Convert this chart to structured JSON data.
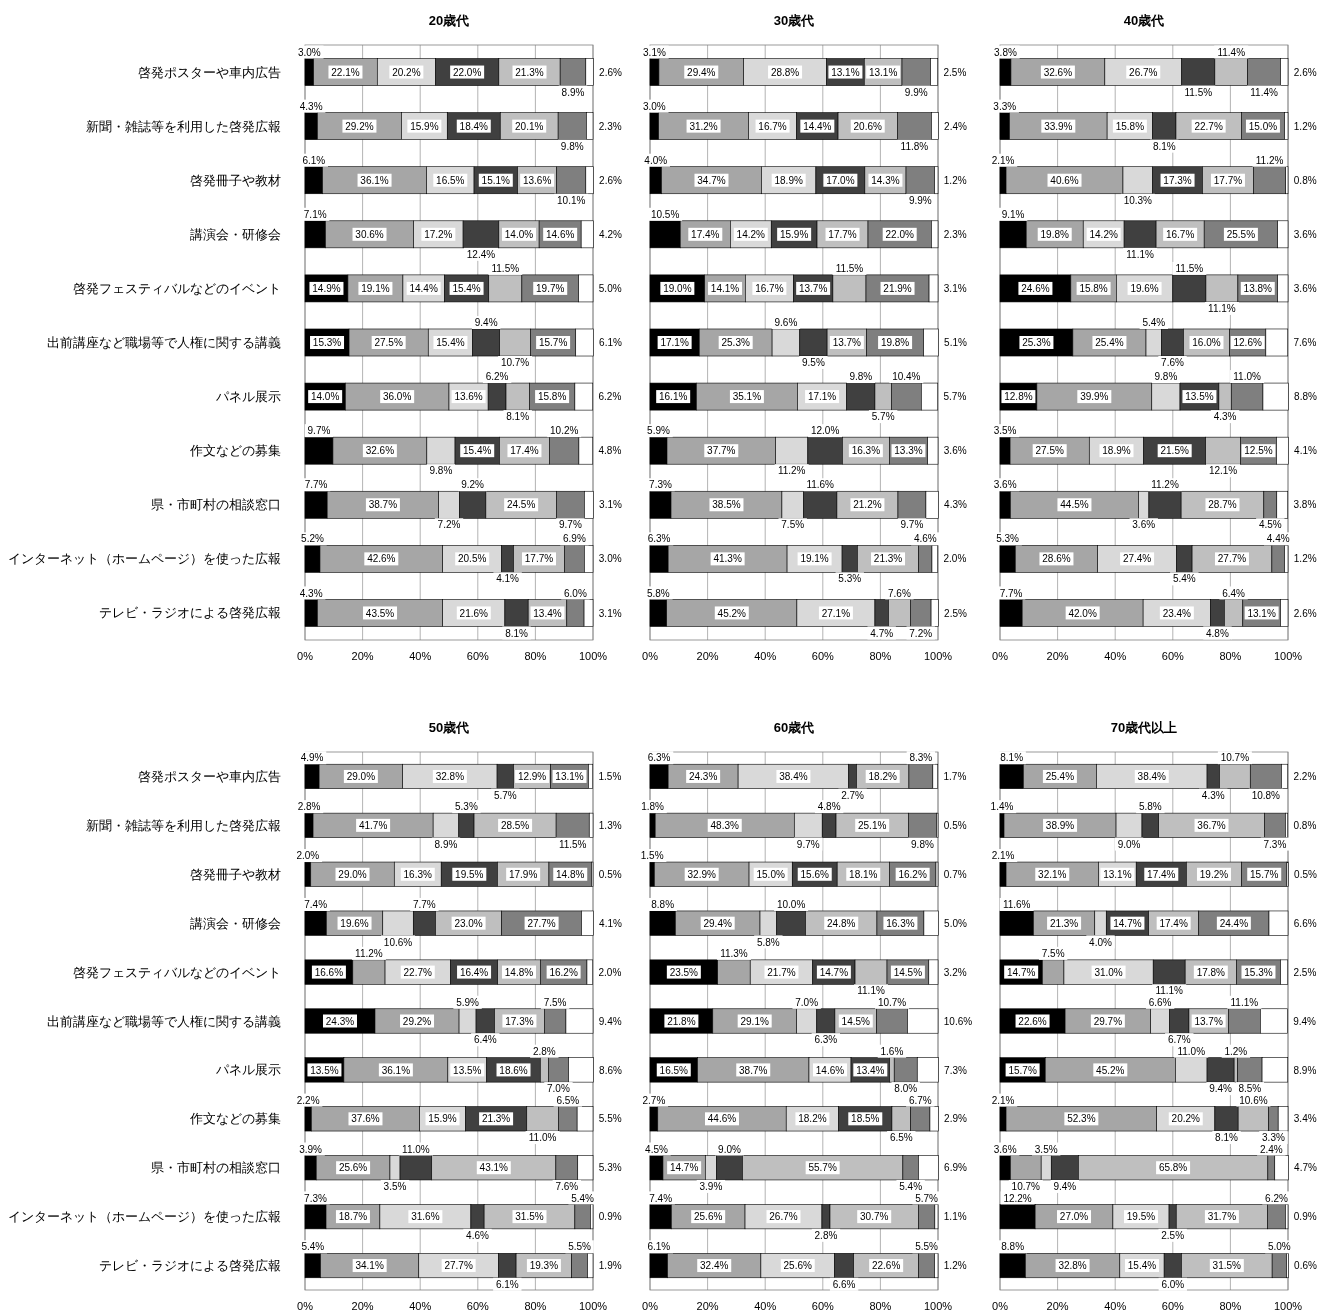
{
  "chart_data": [
    {
      "type": "bar",
      "orientation": "horizontal",
      "stacked": true,
      "title": "20歳代",
      "categories": [
        "啓発ポスターや車内広告",
        "新聞・雑誌等を利用した啓発広報",
        "啓発冊子や教材",
        "講演会・研修会",
        "啓発フェスティバルなどのイベント",
        "出前講座など職場等で人権に関する講義",
        "パネル展示",
        "作文などの募集",
        "県・市町村の相談窓口",
        "インターネット（ホームページ）を使った広報",
        "テレビ・ラジオによる啓発広報"
      ],
      "xlim": [
        0,
        100
      ],
      "xticks": [
        {
          "value": 0,
          "label": "0%"
        },
        {
          "value": 20,
          "label": "20%"
        },
        {
          "value": 40,
          "label": "40%"
        },
        {
          "value": 60,
          "label": "60%"
        },
        {
          "value": 80,
          "label": "80%"
        },
        {
          "value": 100,
          "label": "100%"
        }
      ],
      "grid": "x",
      "series": [
        {
          "color": "#000000",
          "values": [
            3.0,
            4.3,
            6.1,
            7.1,
            14.9,
            15.3,
            14.0,
            9.7,
            7.7,
            5.2,
            4.3
          ],
          "value_labels": [
            "3.0%",
            "4.3%",
            "6.1%",
            "7.1%",
            "14.9%",
            "15.3%",
            "14.0%",
            "9.7%",
            "7.7%",
            "5.2%",
            "4.3%"
          ]
        },
        {
          "color": "#a6a6a6",
          "values": [
            22.1,
            29.2,
            36.1,
            30.6,
            19.1,
            27.5,
            36.0,
            32.6,
            38.7,
            42.6,
            43.5
          ],
          "value_labels": [
            "22.1%",
            "29.2%",
            "36.1%",
            "30.6%",
            "19.1%",
            "27.5%",
            "36.0%",
            "32.6%",
            "38.7%",
            "42.6%",
            "43.5%"
          ]
        },
        {
          "color": "#d9d9d9",
          "values": [
            20.2,
            15.9,
            16.5,
            17.2,
            14.4,
            15.4,
            13.6,
            9.8,
            7.2,
            20.5,
            21.6
          ],
          "value_labels": [
            "20.2%",
            "15.9%",
            "16.5%",
            "17.2%",
            "14.4%",
            "15.4%",
            "13.6%",
            "9.8%",
            "7.2%",
            "20.5%",
            "21.6%"
          ]
        },
        {
          "color": "#404040",
          "values": [
            22.0,
            18.4,
            15.1,
            12.4,
            15.4,
            9.4,
            6.2,
            15.4,
            9.2,
            4.1,
            8.1
          ],
          "value_labels": [
            "22.0%",
            "18.4%",
            "15.1%",
            "12.4%",
            "15.4%",
            "9.4%",
            "6.2%",
            "15.4%",
            "9.2%",
            "4.1%",
            "8.1%"
          ]
        },
        {
          "color": "#bfbfbf",
          "values": [
            21.3,
            20.1,
            13.6,
            14.0,
            11.5,
            10.7,
            8.1,
            17.4,
            24.5,
            17.7,
            13.4
          ],
          "value_labels": [
            "21.3%",
            "20.1%",
            "13.6%",
            "14.0%",
            "11.5%",
            "10.7%",
            "8.1%",
            "17.4%",
            "24.5%",
            "17.7%",
            "13.4%"
          ]
        },
        {
          "color": "#7f7f7f",
          "values": [
            8.9,
            9.8,
            10.1,
            14.6,
            19.7,
            15.7,
            15.8,
            10.2,
            9.7,
            6.9,
            6.0
          ],
          "value_labels": [
            "8.9%",
            "9.8%",
            "10.1%",
            "14.6%",
            "19.7%",
            "15.7%",
            "15.8%",
            "10.2%",
            "9.7%",
            "6.9%",
            "6.0%"
          ]
        },
        {
          "color": "#ffffff",
          "values": [
            2.6,
            2.3,
            2.6,
            4.2,
            5.0,
            6.1,
            6.2,
            4.8,
            3.1,
            3.0,
            3.1
          ],
          "value_labels": [
            "2.6%",
            "2.3%",
            "2.6%",
            "4.2%",
            "5.0%",
            "6.1%",
            "6.2%",
            "4.8%",
            "3.1%",
            "3.0%",
            "3.1%"
          ]
        }
      ]
    },
    {
      "type": "bar",
      "orientation": "horizontal",
      "stacked": true,
      "title": "30歳代",
      "categories": [
        null,
        null,
        null,
        null,
        null,
        null,
        null,
        null,
        null,
        null,
        null
      ],
      "xlim": [
        0,
        100
      ],
      "xticks": [
        {
          "value": 0,
          "label": "0%"
        },
        {
          "value": 20,
          "label": "20%"
        },
        {
          "value": 40,
          "label": "40%"
        },
        {
          "value": 60,
          "label": "60%"
        },
        {
          "value": 80,
          "label": "80%"
        },
        {
          "value": 100,
          "label": "100%"
        }
      ],
      "grid": "x",
      "series": [
        {
          "color": "#000000",
          "values": [
            3.1,
            3.0,
            4.0,
            10.5,
            19.0,
            17.1,
            16.1,
            5.9,
            7.3,
            6.3,
            5.8
          ],
          "value_labels": [
            "3.1%",
            "3.0%",
            "4.0%",
            "10.5%",
            "19.0%",
            "17.1%",
            "16.1%",
            "5.9%",
            "7.3%",
            "6.3%",
            "5.8%"
          ]
        },
        {
          "color": "#a6a6a6",
          "values": [
            29.4,
            31.2,
            34.7,
            17.4,
            14.1,
            25.3,
            35.1,
            37.7,
            38.5,
            41.3,
            45.2
          ],
          "value_labels": [
            "29.4%",
            "31.2%",
            "34.7%",
            "17.4%",
            "14.1%",
            "25.3%",
            "35.1%",
            "37.7%",
            "38.5%",
            "41.3%",
            "45.2%"
          ]
        },
        {
          "color": "#d9d9d9",
          "values": [
            28.8,
            16.7,
            18.9,
            14.2,
            16.7,
            9.6,
            17.1,
            11.2,
            7.5,
            19.1,
            27.1
          ],
          "value_labels": [
            "28.8%",
            "16.7%",
            "18.9%",
            "14.2%",
            "16.7%",
            "9.6%",
            "17.1%",
            "11.2%",
            "7.5%",
            "19.1%",
            "27.1%"
          ]
        },
        {
          "color": "#404040",
          "values": [
            13.1,
            14.4,
            17.0,
            15.9,
            13.7,
            9.5,
            9.8,
            12.0,
            11.6,
            5.3,
            4.7
          ],
          "value_labels": [
            "13.1%",
            "14.4%",
            "17.0%",
            "15.9%",
            "13.7%",
            "9.5%",
            "9.8%",
            "12.0%",
            "11.6%",
            "5.3%",
            "4.7%"
          ]
        },
        {
          "color": "#bfbfbf",
          "values": [
            13.1,
            20.6,
            14.3,
            17.7,
            11.5,
            13.7,
            5.7,
            16.3,
            21.2,
            21.3,
            7.6
          ],
          "value_labels": [
            "13.1%",
            "20.6%",
            "14.3%",
            "17.7%",
            "11.5%",
            "13.7%",
            "5.7%",
            "16.3%",
            "21.2%",
            "21.3%",
            "7.6%"
          ]
        },
        {
          "color": "#7f7f7f",
          "values": [
            9.9,
            11.8,
            9.9,
            22.0,
            21.9,
            19.8,
            10.4,
            13.3,
            9.7,
            4.6,
            7.2
          ],
          "value_labels": [
            "9.9%",
            "11.8%",
            "9.9%",
            "22.0%",
            "21.9%",
            "19.8%",
            "10.4%",
            "13.3%",
            "9.7%",
            "4.6%",
            "7.2%"
          ]
        },
        {
          "color": "#ffffff",
          "values": [
            2.5,
            2.4,
            1.2,
            2.3,
            3.1,
            5.1,
            5.7,
            3.6,
            4.3,
            2.0,
            2.5
          ],
          "value_labels": [
            "2.5%",
            "2.4%",
            "1.2%",
            "2.3%",
            "3.1%",
            "5.1%",
            "5.7%",
            "3.6%",
            "4.3%",
            "2.0%",
            "2.5%"
          ]
        }
      ]
    },
    {
      "type": "bar",
      "orientation": "horizontal",
      "stacked": true,
      "title": "40歳代",
      "categories": [
        null,
        null,
        null,
        null,
        null,
        null,
        null,
        null,
        null,
        null,
        null
      ],
      "xlim": [
        0,
        100
      ],
      "xticks": [
        {
          "value": 0,
          "label": "0%"
        },
        {
          "value": 20,
          "label": "20%"
        },
        {
          "value": 40,
          "label": "40%"
        },
        {
          "value": 60,
          "label": "60%"
        },
        {
          "value": 80,
          "label": "80%"
        },
        {
          "value": 100,
          "label": "100%"
        }
      ],
      "grid": "x",
      "series": [
        {
          "color": "#000000",
          "values": [
            3.8,
            3.3,
            2.1,
            9.1,
            24.6,
            25.3,
            12.8,
            3.5,
            3.6,
            5.3,
            7.7
          ],
          "value_labels": [
            "3.8%",
            "3.3%",
            "2.1%",
            "9.1%",
            "24.6%",
            "25.3%",
            "12.8%",
            "3.5%",
            "3.6%",
            "5.3%",
            "7.7%"
          ]
        },
        {
          "color": "#a6a6a6",
          "values": [
            32.6,
            33.9,
            40.6,
            19.8,
            15.8,
            25.4,
            39.9,
            27.5,
            44.5,
            28.6,
            42.0
          ],
          "value_labels": [
            "32.6%",
            "33.9%",
            "40.6%",
            "19.8%",
            "15.8%",
            "25.4%",
            "39.9%",
            "27.5%",
            "44.5%",
            "28.6%",
            "42.0%"
          ]
        },
        {
          "color": "#d9d9d9",
          "values": [
            26.7,
            15.8,
            10.3,
            14.2,
            19.6,
            5.4,
            9.8,
            18.9,
            3.6,
            27.4,
            23.4
          ],
          "value_labels": [
            "26.7%",
            "15.8%",
            "10.3%",
            "14.2%",
            "19.6%",
            "5.4%",
            "9.8%",
            "18.9%",
            "3.6%",
            "27.4%",
            "23.4%"
          ]
        },
        {
          "color": "#404040",
          "values": [
            11.5,
            8.1,
            17.3,
            11.1,
            11.5,
            7.6,
            13.5,
            21.5,
            11.2,
            5.4,
            4.8
          ],
          "value_labels": [
            "11.5%",
            "8.1%",
            "17.3%",
            "11.1%",
            "11.5%",
            "7.6%",
            "13.5%",
            "21.5%",
            "11.2%",
            "5.4%",
            "4.8%"
          ]
        },
        {
          "color": "#bfbfbf",
          "values": [
            11.4,
            22.7,
            17.7,
            16.7,
            11.1,
            16.0,
            4.3,
            12.1,
            28.7,
            27.7,
            6.4
          ],
          "value_labels": [
            "11.4%",
            "22.7%",
            "17.7%",
            "16.7%",
            "11.1%",
            "16.0%",
            "4.3%",
            "12.1%",
            "28.7%",
            "27.7%",
            "6.4%"
          ]
        },
        {
          "color": "#7f7f7f",
          "values": [
            11.4,
            15.0,
            11.2,
            25.5,
            13.8,
            12.6,
            11.0,
            12.5,
            4.5,
            4.4,
            13.1
          ],
          "value_labels": [
            "11.4%",
            "15.0%",
            "11.2%",
            "25.5%",
            "13.8%",
            "12.6%",
            "11.0%",
            "12.5%",
            "4.5%",
            "4.4%",
            "13.1%"
          ]
        },
        {
          "color": "#ffffff",
          "values": [
            2.6,
            1.2,
            0.8,
            3.6,
            3.6,
            7.6,
            8.8,
            4.1,
            3.8,
            1.2,
            2.6
          ],
          "value_labels": [
            "2.6%",
            "1.2%",
            "0.8%",
            "3.6%",
            "3.6%",
            "7.6%",
            "8.8%",
            "4.1%",
            "3.8%",
            "1.2%",
            "2.6%"
          ]
        }
      ]
    },
    {
      "type": "bar",
      "orientation": "horizontal",
      "stacked": true,
      "title": "50歳代",
      "categories": [
        "啓発ポスターや車内広告",
        "新聞・雑誌等を利用した啓発広報",
        "啓発冊子や教材",
        "講演会・研修会",
        "啓発フェスティバルなどのイベント",
        "出前講座など職場等で人権に関する講義",
        "パネル展示",
        "作文などの募集",
        "県・市町村の相談窓口",
        "インターネット（ホームページ）を使った広報",
        "テレビ・ラジオによる啓発広報"
      ],
      "xlim": [
        0,
        100
      ],
      "xticks": [
        {
          "value": 0,
          "label": "0%"
        },
        {
          "value": 20,
          "label": "20%"
        },
        {
          "value": 40,
          "label": "40%"
        },
        {
          "value": 60,
          "label": "60%"
        },
        {
          "value": 80,
          "label": "80%"
        },
        {
          "value": 100,
          "label": "100%"
        }
      ],
      "grid": "x",
      "series": [
        {
          "color": "#000000",
          "values": [
            4.9,
            2.8,
            2.0,
            7.4,
            16.6,
            24.3,
            13.5,
            2.2,
            3.9,
            7.3,
            5.4
          ],
          "value_labels": [
            "4.9%",
            "2.8%",
            "2.0%",
            "7.4%",
            "16.6%",
            "24.3%",
            "13.5%",
            "2.2%",
            "3.9%",
            "7.3%",
            "5.4%"
          ]
        },
        {
          "color": "#a6a6a6",
          "values": [
            29.0,
            41.7,
            29.0,
            19.6,
            11.2,
            29.2,
            36.1,
            37.6,
            25.6,
            18.7,
            34.1
          ],
          "value_labels": [
            "29.0%",
            "41.7%",
            "29.0%",
            "19.6%",
            "11.2%",
            "29.2%",
            "36.1%",
            "37.6%",
            "25.6%",
            "18.7%",
            "34.1%"
          ]
        },
        {
          "color": "#d9d9d9",
          "values": [
            32.8,
            8.9,
            16.3,
            10.6,
            22.7,
            5.9,
            13.5,
            15.9,
            3.5,
            31.6,
            27.7
          ],
          "value_labels": [
            "32.8%",
            "8.9%",
            "16.3%",
            "10.6%",
            "22.7%",
            "5.9%",
            "13.5%",
            "15.9%",
            "3.5%",
            "31.6%",
            "27.7%"
          ]
        },
        {
          "color": "#404040",
          "values": [
            5.7,
            5.3,
            19.5,
            7.7,
            16.4,
            6.4,
            18.6,
            21.3,
            11.0,
            4.6,
            6.1
          ],
          "value_labels": [
            "5.7%",
            "5.3%",
            "19.5%",
            "7.7%",
            "16.4%",
            "6.4%",
            "18.6%",
            "21.3%",
            "11.0%",
            "4.6%",
            "6.1%"
          ]
        },
        {
          "color": "#bfbfbf",
          "values": [
            12.9,
            28.5,
            17.9,
            23.0,
            14.8,
            17.3,
            2.8,
            11.0,
            43.1,
            31.5,
            19.3
          ],
          "value_labels": [
            "12.9%",
            "28.5%",
            "17.9%",
            "23.0%",
            "14.8%",
            "17.3%",
            "2.8%",
            "11.0%",
            "43.1%",
            "31.5%",
            "19.3%"
          ]
        },
        {
          "color": "#7f7f7f",
          "values": [
            13.1,
            11.5,
            14.8,
            27.7,
            16.2,
            7.5,
            7.0,
            6.5,
            7.6,
            5.4,
            5.5
          ],
          "value_labels": [
            "13.1%",
            "11.5%",
            "14.8%",
            "27.7%",
            "16.2%",
            "7.5%",
            "7.0%",
            "6.5%",
            "7.6%",
            "5.4%",
            "5.5%"
          ]
        },
        {
          "color": "#ffffff",
          "values": [
            1.5,
            1.3,
            0.5,
            4.1,
            2.0,
            9.4,
            8.6,
            5.5,
            5.3,
            0.9,
            1.9
          ],
          "value_labels": [
            "1.5%",
            "1.3%",
            "0.5%",
            "4.1%",
            "2.0%",
            "9.4%",
            "8.6%",
            "5.5%",
            "5.3%",
            "0.9%",
            "1.9%"
          ]
        }
      ]
    },
    {
      "type": "bar",
      "orientation": "horizontal",
      "stacked": true,
      "title": "60歳代",
      "categories": [
        null,
        null,
        null,
        null,
        null,
        null,
        null,
        null,
        null,
        null,
        null
      ],
      "xlim": [
        0,
        100
      ],
      "xticks": [
        {
          "value": 0,
          "label": "0%"
        },
        {
          "value": 20,
          "label": "20%"
        },
        {
          "value": 40,
          "label": "40%"
        },
        {
          "value": 60,
          "label": "60%"
        },
        {
          "value": 80,
          "label": "80%"
        },
        {
          "value": 100,
          "label": "100%"
        }
      ],
      "grid": "x",
      "series": [
        {
          "color": "#000000",
          "values": [
            6.3,
            1.8,
            1.5,
            8.8,
            23.5,
            21.8,
            16.5,
            2.7,
            4.5,
            7.4,
            6.1
          ],
          "value_labels": [
            "6.3%",
            "1.8%",
            "1.5%",
            "8.8%",
            "23.5%",
            "21.8%",
            "16.5%",
            "2.7%",
            "4.5%",
            "7.4%",
            "6.1%"
          ]
        },
        {
          "color": "#a6a6a6",
          "values": [
            24.3,
            48.3,
            32.9,
            29.4,
            11.3,
            29.1,
            38.7,
            44.6,
            14.7,
            25.6,
            32.4
          ],
          "value_labels": [
            "24.3%",
            "48.3%",
            "32.9%",
            "29.4%",
            "11.3%",
            "29.1%",
            "38.7%",
            "44.6%",
            "14.7%",
            "25.6%",
            "32.4%"
          ]
        },
        {
          "color": "#d9d9d9",
          "values": [
            38.4,
            9.7,
            15.0,
            5.8,
            21.7,
            7.0,
            14.6,
            18.2,
            3.9,
            26.7,
            25.6
          ],
          "value_labels": [
            "38.4%",
            "9.7%",
            "15.0%",
            "5.8%",
            "21.7%",
            "7.0%",
            "14.6%",
            "18.2%",
            "3.9%",
            "26.7%",
            "25.6%"
          ]
        },
        {
          "color": "#404040",
          "values": [
            2.7,
            4.8,
            15.6,
            10.0,
            14.7,
            6.3,
            13.4,
            18.5,
            9.0,
            2.8,
            6.6
          ],
          "value_labels": [
            "2.7%",
            "4.8%",
            "15.6%",
            "10.0%",
            "14.7%",
            "6.3%",
            "13.4%",
            "18.5%",
            "9.0%",
            "2.8%",
            "6.6%"
          ]
        },
        {
          "color": "#bfbfbf",
          "values": [
            18.2,
            25.1,
            18.1,
            24.8,
            11.1,
            14.5,
            1.6,
            6.5,
            55.7,
            30.7,
            22.6
          ],
          "value_labels": [
            "18.2%",
            "25.1%",
            "18.1%",
            "24.8%",
            "11.1%",
            "14.5%",
            "1.6%",
            "6.5%",
            "55.7%",
            "30.7%",
            "22.6%"
          ]
        },
        {
          "color": "#7f7f7f",
          "values": [
            8.3,
            9.8,
            16.2,
            16.3,
            14.5,
            10.7,
            8.0,
            6.7,
            5.4,
            5.7,
            5.5
          ],
          "value_labels": [
            "8.3%",
            "9.8%",
            "16.2%",
            "16.3%",
            "14.5%",
            "10.7%",
            "8.0%",
            "6.7%",
            "5.4%",
            "5.7%",
            "5.5%"
          ]
        },
        {
          "color": "#ffffff",
          "values": [
            1.7,
            0.5,
            0.7,
            5.0,
            3.2,
            10.6,
            7.3,
            2.9,
            6.9,
            1.1,
            1.2
          ],
          "value_labels": [
            "1.7%",
            "0.5%",
            "0.7%",
            "5.0%",
            "3.2%",
            "10.6%",
            "7.3%",
            "2.9%",
            "6.9%",
            "1.1%",
            "1.2%"
          ]
        }
      ]
    },
    {
      "type": "bar",
      "orientation": "horizontal",
      "stacked": true,
      "title": "70歳代以上",
      "categories": [
        null,
        null,
        null,
        null,
        null,
        null,
        null,
        null,
        null,
        null,
        null
      ],
      "xlim": [
        0,
        100
      ],
      "xticks": [
        {
          "value": 0,
          "label": "0%"
        },
        {
          "value": 20,
          "label": "20%"
        },
        {
          "value": 40,
          "label": "40%"
        },
        {
          "value": 60,
          "label": "60%"
        },
        {
          "value": 80,
          "label": "80%"
        },
        {
          "value": 100,
          "label": "100%"
        }
      ],
      "grid": "x",
      "series": [
        {
          "color": "#000000",
          "values": [
            8.1,
            1.4,
            2.1,
            11.6,
            14.7,
            22.6,
            15.7,
            2.1,
            3.6,
            12.2,
            8.8
          ],
          "value_labels": [
            "8.1%",
            "1.4%",
            "2.1%",
            "11.6%",
            "14.7%",
            "22.6%",
            "15.7%",
            "2.1%",
            "3.6%",
            "12.2%",
            "8.8%"
          ]
        },
        {
          "color": "#a6a6a6",
          "values": [
            25.4,
            38.9,
            32.1,
            21.3,
            7.5,
            29.7,
            45.2,
            52.3,
            10.7,
            27.0,
            32.8
          ],
          "value_labels": [
            "25.4%",
            "38.9%",
            "32.1%",
            "21.3%",
            "7.5%",
            "29.7%",
            "45.2%",
            "52.3%",
            "10.7%",
            "27.0%",
            "32.8%"
          ]
        },
        {
          "color": "#d9d9d9",
          "values": [
            38.4,
            9.0,
            13.1,
            4.0,
            31.0,
            6.6,
            11.0,
            20.2,
            3.5,
            19.5,
            15.4
          ],
          "value_labels": [
            "38.4%",
            "9.0%",
            "13.1%",
            "4.0%",
            "31.0%",
            "6.6%",
            "11.0%",
            "20.2%",
            "3.5%",
            "19.5%",
            "15.4%"
          ]
        },
        {
          "color": "#404040",
          "values": [
            4.3,
            5.8,
            17.4,
            14.7,
            11.1,
            6.7,
            9.4,
            8.1,
            9.4,
            2.5,
            6.0
          ],
          "value_labels": [
            "4.3%",
            "5.8%",
            "17.4%",
            "14.7%",
            "11.1%",
            "6.7%",
            "9.4%",
            "8.1%",
            "9.4%",
            "2.5%",
            "6.0%"
          ]
        },
        {
          "color": "#bfbfbf",
          "values": [
            10.7,
            36.7,
            19.2,
            17.4,
            17.8,
            13.7,
            1.2,
            10.6,
            65.8,
            31.7,
            31.5
          ],
          "value_labels": [
            "10.7%",
            "36.7%",
            "19.2%",
            "17.4%",
            "17.8%",
            "13.7%",
            "1.2%",
            "10.6%",
            "65.8%",
            "31.7%",
            "31.5%"
          ]
        },
        {
          "color": "#7f7f7f",
          "values": [
            10.8,
            7.3,
            15.7,
            24.4,
            15.3,
            11.1,
            8.5,
            3.3,
            2.4,
            6.2,
            5.0
          ],
          "value_labels": [
            "10.8%",
            "7.3%",
            "15.7%",
            "24.4%",
            "15.3%",
            "11.1%",
            "8.5%",
            "3.3%",
            "2.4%",
            "6.2%",
            "5.0%"
          ]
        },
        {
          "color": "#ffffff",
          "values": [
            2.2,
            0.8,
            0.5,
            6.6,
            2.5,
            9.4,
            8.9,
            3.4,
            4.7,
            0.9,
            0.6
          ],
          "value_labels": [
            "2.2%",
            "0.8%",
            "0.5%",
            "6.6%",
            "2.5%",
            "9.4%",
            "8.9%",
            "3.4%",
            "4.7%",
            "0.9%",
            "0.6%"
          ]
        }
      ]
    }
  ]
}
